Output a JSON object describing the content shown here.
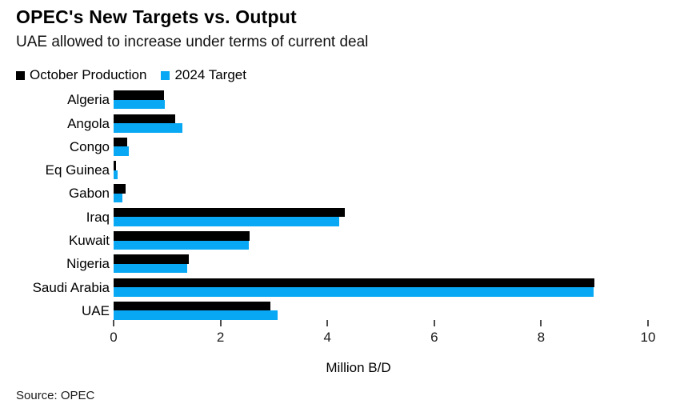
{
  "header": {
    "title": "OPEC's New Targets vs. Output",
    "subtitle": "UAE allowed to increase under terms of current deal"
  },
  "legend": [
    {
      "label": "October Production",
      "color": "#000000"
    },
    {
      "label": "2024 Target",
      "color": "#09a8f4"
    }
  ],
  "chart_data": {
    "type": "bar",
    "orientation": "horizontal",
    "title": "OPEC's New Targets vs. Output",
    "subtitle": "UAE allowed to increase under terms of current deal",
    "categories": [
      "Algeria",
      "Angola",
      "Congo",
      "Eq Guinea",
      "Gabon",
      "Iraq",
      "Kuwait",
      "Nigeria",
      "Saudi Arabia",
      "UAE"
    ],
    "series": [
      {
        "name": "October Production",
        "color": "#000000",
        "values": [
          0.95,
          1.15,
          0.25,
          0.05,
          0.22,
          4.33,
          2.55,
          1.4,
          9.0,
          2.93
        ]
      },
      {
        "name": "2024 Target",
        "color": "#09a8f4",
        "values": [
          0.96,
          1.28,
          0.28,
          0.07,
          0.17,
          4.22,
          2.53,
          1.38,
          8.98,
          3.07
        ]
      }
    ],
    "xlabel": "Million B/D",
    "x_ticks": [
      "0",
      "2",
      "4",
      "6",
      "8",
      "10"
    ],
    "x_tick_values": [
      0,
      2,
      4,
      6,
      8,
      10
    ],
    "xlim": [
      0,
      10
    ],
    "grid": "off",
    "legend_position": "top-left"
  },
  "footer": {
    "source": "Source: OPEC"
  }
}
